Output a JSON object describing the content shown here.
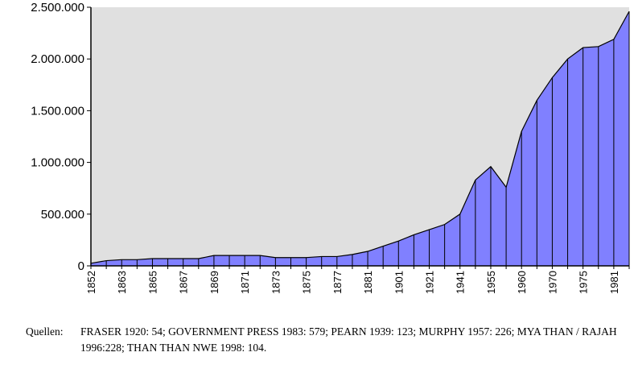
{
  "chart_data": {
    "type": "area",
    "title": "",
    "xlabel": "",
    "ylabel": "",
    "ylim": [
      0,
      2500000
    ],
    "y_ticks": [
      0,
      500000,
      1000000,
      1500000,
      2000000,
      2500000
    ],
    "y_tick_labels": [
      "0",
      "500.000",
      "1.000.000",
      "1.500.000",
      "2.000.000",
      "2.500.000"
    ],
    "x_tick_labels": [
      "1852",
      "1863",
      "1865",
      "1867",
      "1869",
      "1871",
      "1873",
      "1875",
      "1877",
      "1881",
      "1901",
      "1921",
      "1941",
      "1955",
      "1960",
      "1970",
      "1975",
      "1981"
    ],
    "grid": false,
    "colors": {
      "fill": "#8080ff",
      "plot_background": "#e0e0e0",
      "stroke": "#000000"
    },
    "values": [
      25000,
      50000,
      60000,
      60000,
      70000,
      70000,
      70000,
      70000,
      100000,
      100000,
      100000,
      100000,
      80000,
      80000,
      80000,
      90000,
      90000,
      110000,
      140000,
      190000,
      240000,
      300000,
      350000,
      400000,
      500000,
      830000,
      960000,
      760000,
      1300000,
      1600000,
      1820000,
      2000000,
      2110000,
      2120000,
      2190000,
      2460000
    ]
  },
  "source": {
    "label": "Quellen:",
    "text": "FRASER 1920: 54; GOVERNMENT PRESS 1983: 579; PEARN 1939: 123; MURPHY 1957: 226; MYA THAN / RAJAH 1996:228; THAN THAN NWE 1998: 104."
  }
}
